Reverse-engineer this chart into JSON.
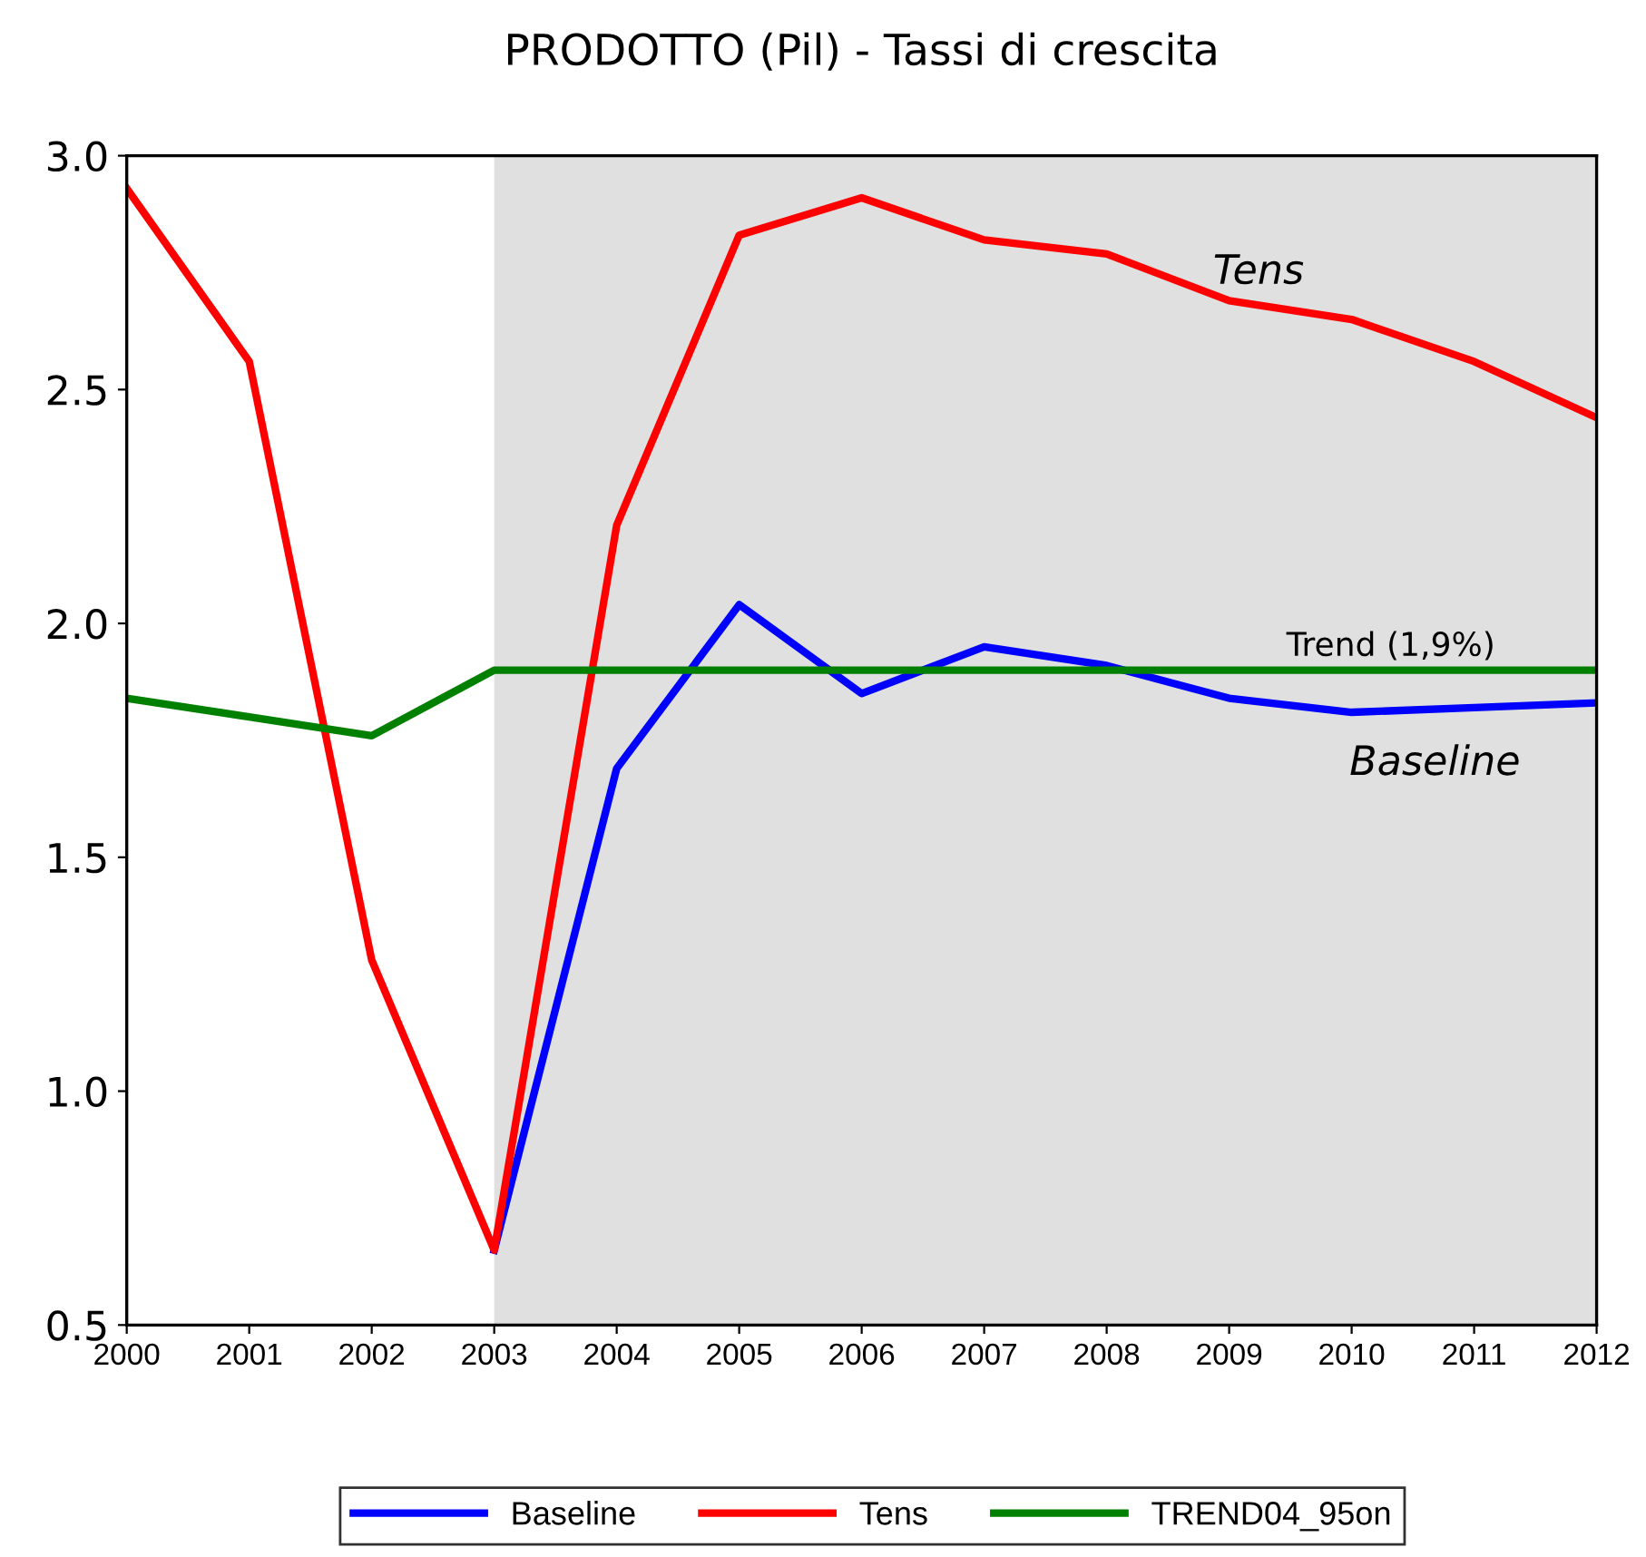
{
  "chart_data": {
    "type": "line",
    "title": "PRODOTTO (Pil) - Tassi di crescita",
    "x": [
      2000,
      2001,
      2002,
      2003,
      2004,
      2005,
      2006,
      2007,
      2008,
      2009,
      2010,
      2011,
      2012
    ],
    "series": [
      {
        "name": "Baseline",
        "color": "#0000ff",
        "values": [
          null,
          null,
          null,
          0.66,
          1.69,
          2.04,
          1.85,
          1.95,
          1.91,
          1.84,
          1.81,
          1.82,
          1.83
        ]
      },
      {
        "name": "Tens",
        "color": "#ff0000",
        "values": [
          2.93,
          2.56,
          1.28,
          0.66,
          2.21,
          2.83,
          2.91,
          2.82,
          2.79,
          2.69,
          2.65,
          2.56,
          2.44
        ]
      },
      {
        "name": "TREND04_95on",
        "color": "#008000",
        "values": [
          1.84,
          1.8,
          1.76,
          1.9,
          1.9,
          1.9,
          1.9,
          1.9,
          1.9,
          1.9,
          1.9,
          1.9,
          1.9
        ]
      }
    ],
    "xlim": [
      2000,
      2012
    ],
    "xticks": [
      2000,
      2001,
      2002,
      2003,
      2004,
      2005,
      2006,
      2007,
      2008,
      2009,
      2010,
      2011,
      2012
    ],
    "ylim": [
      0.5,
      3.0
    ],
    "yticks": [
      {
        "value": 0.5,
        "label": "0.5"
      },
      {
        "value": 1.0,
        "label": "1.0"
      },
      {
        "value": 1.5,
        "label": "1.5"
      },
      {
        "value": 2.0,
        "label": "2.0"
      },
      {
        "value": 2.5,
        "label": "2.5"
      },
      {
        "value": 3.0,
        "label": "3.0"
      }
    ],
    "bands": [
      {
        "axis": "x",
        "from": 2003,
        "to": 2012,
        "color": "#e0e0e0"
      }
    ],
    "annotations": [
      "Tens",
      "Trend (1,9%)",
      "Baseline"
    ],
    "legend": "bottom",
    "grid": false,
    "line_style": "solid",
    "marker": "none"
  }
}
